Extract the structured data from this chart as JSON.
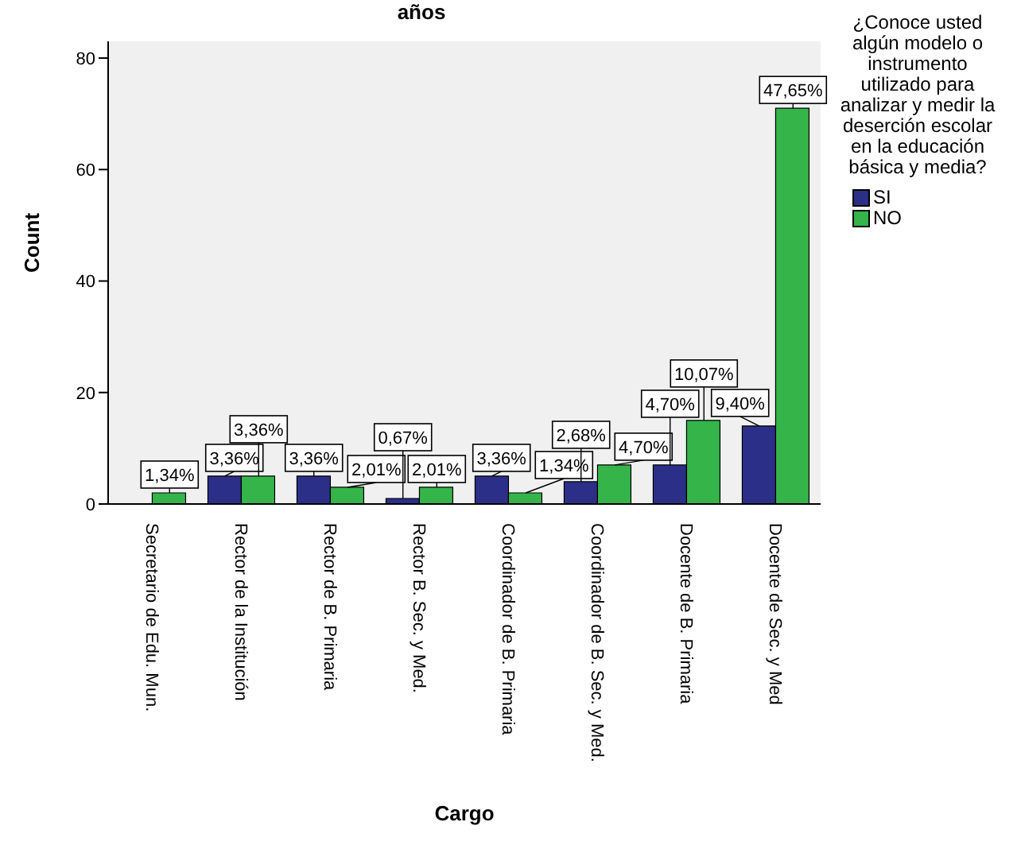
{
  "chart_data": {
    "type": "bar",
    "title": "años",
    "xlabel": "Cargo",
    "ylabel": "Count",
    "legend_title": "¿Conoce usted algún modelo o instrumento utilizado para analizar y medir la deserción escolar en la educación básica y media?",
    "categories": [
      "Secretario de Edu. Mun.",
      "Rector de la Institución",
      "Rector de  B. Primaria",
      "Rector B. Sec. y Med.",
      "Coordinador de B. Primaria",
      "Coordinador de B. Sec. y Med.",
      "Docente de  B. Primaria",
      "Docente de Sec. y Med"
    ],
    "series": [
      {
        "name": "SI",
        "color": "#2b2f87",
        "values": [
          0,
          5,
          5,
          1,
          5,
          4,
          7,
          14
        ]
      },
      {
        "name": "NO",
        "color": "#35b44a",
        "values": [
          2,
          5,
          3,
          3,
          2,
          7,
          15,
          71
        ]
      }
    ],
    "annotations": [
      {
        "text": "1,34%",
        "x": "Secretario de Edu. Mun.",
        "y": 2
      },
      {
        "text": "3,36%",
        "x": "Rector de la Institución",
        "y": 5
      },
      {
        "text": "3,36%",
        "x": "Rector de la Institución",
        "y": 5
      },
      {
        "text": "3,36%",
        "x": "Rector de  B. Primaria",
        "y": 5
      },
      {
        "text": "2,01%",
        "x": "Rector de  B. Primaria",
        "y": 3
      },
      {
        "text": "0,67%",
        "x": "Rector B. Sec. y Med.",
        "y": 1
      },
      {
        "text": "2,01%",
        "x": "Rector B. Sec. y Med.",
        "y": 3
      },
      {
        "text": "3,36%",
        "x": "Coordinador de B. Primaria",
        "y": 5
      },
      {
        "text": "1,34%",
        "x": "Coordinador de B. Primaria",
        "y": 2
      },
      {
        "text": "2,68%",
        "x": "Coordinador de B. Sec. y Med.",
        "y": 4
      },
      {
        "text": "4,70%",
        "x": "Coordinador de B. Sec. y Med.",
        "y": 7
      },
      {
        "text": "4,70%",
        "x": "Docente de  B. Primaria",
        "y": 7
      },
      {
        "text": "10,07%",
        "x": "Docente de  B. Primaria",
        "y": 15
      },
      {
        "text": "9,40%",
        "x": "Docente de Sec. y Med",
        "y": 14
      },
      {
        "text": "47,65%",
        "x": "Docente de Sec. y Med",
        "y": 71
      }
    ],
    "ylim": [
      0,
      83
    ],
    "yticks": [
      0,
      20,
      40,
      60,
      80
    ],
    "grid": false,
    "legend": "right"
  }
}
